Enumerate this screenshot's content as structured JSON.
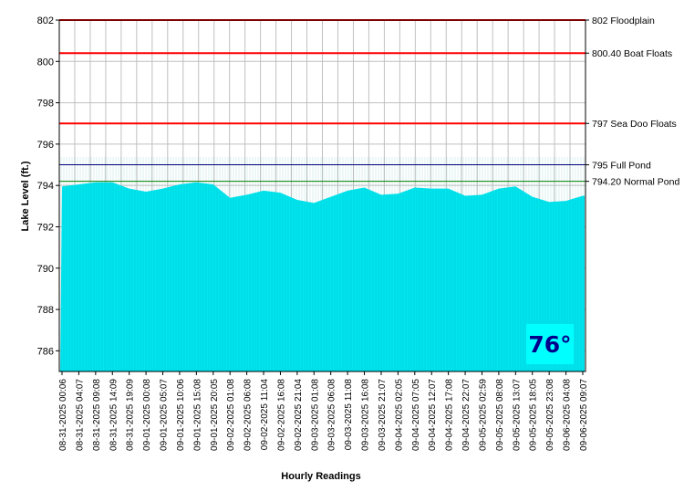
{
  "chart_data": {
    "type": "area",
    "xlabel": "Hourly Readings",
    "ylabel": "Lake Level (ft.)",
    "ylim": [
      785,
      802
    ],
    "yticks": [
      786,
      788,
      790,
      792,
      794,
      796,
      798,
      800,
      802
    ],
    "grid": true,
    "x": [
      "08-31-2025 00:06",
      "08-31-2025 04:07",
      "08-31-2025 09:08",
      "08-31-2025 14:09",
      "08-31-2025 19:09",
      "09-01-2025 00:08",
      "09-01-2025 05:07",
      "09-01-2025 10:06",
      "09-01-2025 15:08",
      "09-01-2025 20:05",
      "09-02-2025 01:08",
      "09-02-2025 06:08",
      "09-02-2025 11:04",
      "09-02-2025 16:08",
      "09-02-2025 21:04",
      "09-03-2025 01:08",
      "09-03-2025 06:08",
      "09-03-2025 11:08",
      "09-03-2025 16:08",
      "09-03-2025 21:07",
      "09-04-2025 02:05",
      "09-04-2025 07:05",
      "09-04-2025 12:07",
      "09-04-2025 17:08",
      "09-04-2025 22:07",
      "09-05-2025 02:59",
      "09-05-2025 08:08",
      "09-05-2025 13:07",
      "09-05-2025 18:05",
      "09-05-2025 23:08",
      "09-06-2025 04:08",
      "09-06-2025 09:07"
    ],
    "series": [
      {
        "color": "#00e5ee",
        "values": [
          793.95,
          794.05,
          794.15,
          794.15,
          793.85,
          793.7,
          793.85,
          794.05,
          794.15,
          794.05,
          793.4,
          793.55,
          793.75,
          793.65,
          793.3,
          793.15,
          793.45,
          793.75,
          793.9,
          793.55,
          793.6,
          793.9,
          793.85,
          793.85,
          793.5,
          793.55,
          793.85,
          793.95,
          793.45,
          793.2,
          793.25,
          793.5
        ]
      }
    ],
    "reference_lines": [
      {
        "label": "802 Floodplain",
        "value": 802,
        "color": "#ff0000",
        "width": 2
      },
      {
        "label": "800.40 Boat Floats",
        "value": 800.4,
        "color": "#ff0000",
        "width": 2
      },
      {
        "label": "797 Sea Doo Floats",
        "value": 797,
        "color": "#ff0000",
        "width": 2
      },
      {
        "label": "795 Full Pond",
        "value": 795,
        "color": "#000080",
        "width": 1
      },
      {
        "label": "794.20 Normal Pond",
        "value": 794.2,
        "color": "#008000",
        "width": 1
      }
    ]
  },
  "temperature": "76°"
}
